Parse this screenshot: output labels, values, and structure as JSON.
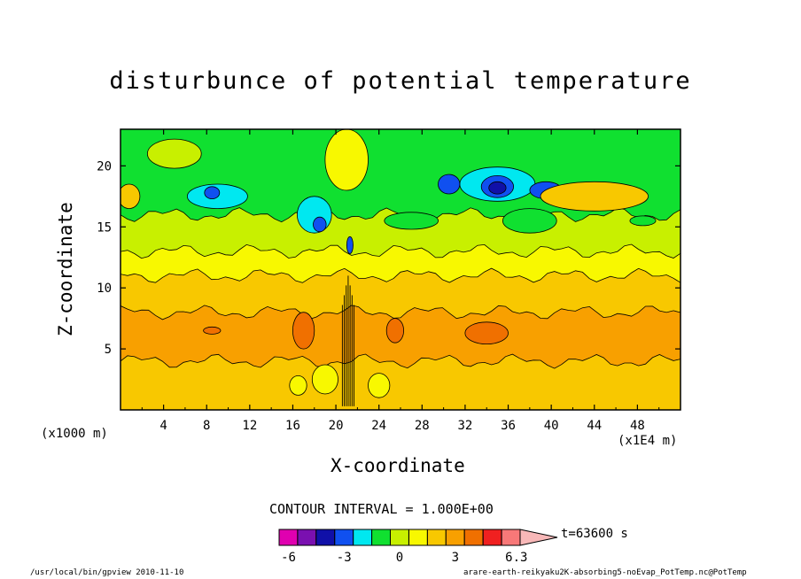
{
  "chart_data": {
    "type": "heatmap",
    "title": "disturbunce of potential temperature",
    "xlabel": "X-coordinate",
    "ylabel": "Z-coordinate",
    "x_unit_label": "(x1000 m)",
    "x_scale_label": "(x1E4 m)",
    "xlim": [
      0,
      52
    ],
    "ylim": [
      0,
      23
    ],
    "x_ticks": [
      4,
      8,
      12,
      16,
      20,
      24,
      28,
      32,
      36,
      40,
      44,
      48
    ],
    "y_ticks": [
      5,
      10,
      15,
      20
    ],
    "contour_interval_label": "CONTOUR INTERVAL = 1.000E+00",
    "time_label": "t=63600 s",
    "colorbar": {
      "colors": [
        "#e000b0",
        "#7a10b0",
        "#1010a8",
        "#1050f0",
        "#00e8f0",
        "#10e030",
        "#c8f000",
        "#f8f800",
        "#f8c800",
        "#f8a000",
        "#f07000",
        "#f02020",
        "#f87878",
        "#f8b8b8"
      ],
      "tick_labels": [
        "-6",
        "-3",
        "0",
        "3",
        "6.3"
      ],
      "tick_values": [
        -6,
        -3,
        0,
        3,
        6.3
      ],
      "min": -6.5,
      "max": 6.5
    },
    "background_bands": [
      {
        "level_color": "#f8a000",
        "z_bottom": 4.0,
        "z_top": 8.0
      },
      {
        "level_color": "#f8c800",
        "z_bottom": 0,
        "z_top": 4.0
      },
      {
        "level_color": "#f8c800",
        "z_bottom": 8.0,
        "z_top": 11.0
      },
      {
        "level_color": "#f8f800",
        "z_bottom": 11.0,
        "z_top": 13.0
      },
      {
        "level_color": "#c8f000",
        "z_bottom": 13.0,
        "z_top": 16.0
      },
      {
        "level_color": "#10e030",
        "z_bottom": 16.0,
        "z_top": 23.0
      }
    ],
    "features": [
      {
        "x": 8.5,
        "z": 6.5,
        "rx": 0.8,
        "rz": 0.3,
        "color": "#f07000"
      },
      {
        "x": 17.0,
        "z": 6.5,
        "rx": 1.0,
        "rz": 1.5,
        "color": "#f07000"
      },
      {
        "x": 25.5,
        "z": 6.5,
        "rx": 0.8,
        "rz": 1.0,
        "color": "#f07000"
      },
      {
        "x": 34.0,
        "z": 6.3,
        "rx": 2.0,
        "rz": 0.9,
        "color": "#f07000"
      },
      {
        "x": 38.0,
        "z": 15.5,
        "rx": 2.5,
        "rz": 1.0,
        "color": "#10e030"
      },
      {
        "x": 27.0,
        "z": 15.5,
        "rx": 2.5,
        "rz": 0.7,
        "color": "#10e030"
      },
      {
        "x": 9.0,
        "z": 17.5,
        "rx": 2.8,
        "rz": 1.0,
        "color": "#00e8f0"
      },
      {
        "x": 8.5,
        "z": 17.8,
        "rx": 0.7,
        "rz": 0.5,
        "color": "#1050f0"
      },
      {
        "x": 18.0,
        "z": 16.0,
        "rx": 1.6,
        "rz": 1.5,
        "color": "#00e8f0"
      },
      {
        "x": 18.5,
        "z": 15.2,
        "rx": 0.6,
        "rz": 0.6,
        "color": "#1050f0"
      },
      {
        "x": 35.0,
        "z": 18.5,
        "rx": 3.5,
        "rz": 1.4,
        "color": "#00e8f0"
      },
      {
        "x": 35.0,
        "z": 18.3,
        "rx": 1.5,
        "rz": 0.9,
        "color": "#1050f0"
      },
      {
        "x": 35.0,
        "z": 18.2,
        "rx": 0.8,
        "rz": 0.5,
        "color": "#1010a8"
      },
      {
        "x": 39.5,
        "z": 18.0,
        "rx": 1.5,
        "rz": 0.7,
        "color": "#1050f0"
      },
      {
        "x": 30.5,
        "z": 18.5,
        "rx": 1.0,
        "rz": 0.8,
        "color": "#1050f0"
      },
      {
        "x": 5.0,
        "z": 21.0,
        "rx": 2.5,
        "rz": 1.2,
        "color": "#c8f000"
      },
      {
        "x": 21.0,
        "z": 20.5,
        "rx": 2.0,
        "rz": 2.5,
        "color": "#f8f800"
      },
      {
        "x": 44.0,
        "z": 17.5,
        "rx": 5.0,
        "rz": 1.2,
        "color": "#f8c800"
      },
      {
        "x": 0.8,
        "z": 17.5,
        "rx": 1.0,
        "rz": 1.0,
        "color": "#f8c800"
      },
      {
        "x": 19.0,
        "z": 2.5,
        "rx": 1.2,
        "rz": 1.2,
        "color": "#f8f800"
      },
      {
        "x": 24.0,
        "z": 2.0,
        "rx": 1.0,
        "rz": 1.0,
        "color": "#f8f800"
      },
      {
        "x": 16.5,
        "z": 2.0,
        "rx": 0.8,
        "rz": 0.8,
        "color": "#f8f800"
      },
      {
        "x": 48.5,
        "z": 15.5,
        "rx": 1.2,
        "rz": 0.4,
        "color": "#10e030"
      },
      {
        "x": 21.3,
        "z": 13.5,
        "rx": 0.3,
        "rz": 0.7,
        "color": "#1050f0"
      }
    ]
  },
  "footer": {
    "program": "/usr/local/bin/gpview  2010-11-10",
    "source": "arare-earth-reikyaku2K-absorbing5-noEvap_PotTemp.nc@PotTemp"
  }
}
